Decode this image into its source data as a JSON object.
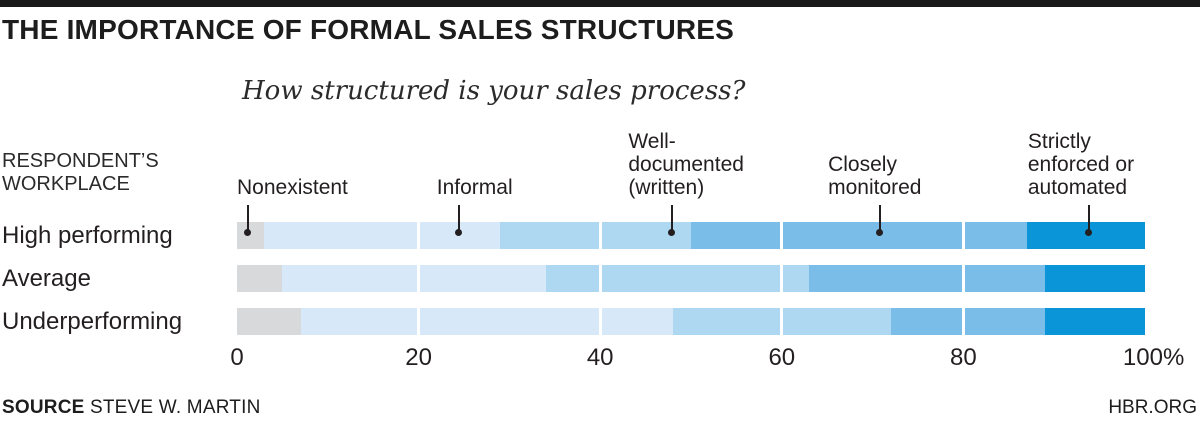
{
  "header": {
    "title": "THE IMPORTANCE OF FORMAL SALES STRUCTURES"
  },
  "row_axis": {
    "line1": "RESPONDENT’S",
    "line2": "WORKPLACE"
  },
  "chart_data": {
    "type": "bar",
    "stacked": true,
    "orientation": "horizontal",
    "title": "How structured is your sales process?",
    "categories": [
      "High performing",
      "Average",
      "Underperforming"
    ],
    "series": [
      {
        "name": "Nonexistent",
        "color": "#d8d9db",
        "values": [
          3,
          5,
          7
        ]
      },
      {
        "name": "Informal",
        "color": "#d7e9f8",
        "values": [
          26,
          29,
          41
        ]
      },
      {
        "name": "Well-documented (written)",
        "color": "#aed7f1",
        "values": [
          21,
          29,
          24
        ]
      },
      {
        "name": "Closely monitored",
        "color": "#7abde8",
        "values": [
          37,
          26,
          17
        ]
      },
      {
        "name": "Strictly enforced or automated",
        "color": "#0995d8",
        "values": [
          13,
          11,
          11
        ]
      }
    ],
    "xlim": [
      0,
      100
    ],
    "grid": true,
    "grid_pcts": [
      20,
      40,
      60,
      80
    ],
    "gridline_color": "#ffffff",
    "x_ticks": [
      {
        "label": "0",
        "pct": 0
      },
      {
        "label": "20",
        "pct": 20
      },
      {
        "label": "40",
        "pct": 40
      },
      {
        "label": "60",
        "pct": 60
      },
      {
        "label": "80",
        "pct": 80
      },
      {
        "label": "100%",
        "pct": 100
      }
    ],
    "series_labels": [
      {
        "lines": [
          "Nonexistent"
        ],
        "left_pct": 0,
        "pointer_pct": 1.2
      },
      {
        "lines": [
          "Informal"
        ],
        "left_pct": 22.0,
        "pointer_pct": 24.4
      },
      {
        "lines": [
          "Well-",
          "documented",
          "(written)"
        ],
        "left_pct": 43.1,
        "pointer_pct": 47.9
      },
      {
        "lines": [
          "Closely",
          "monitored"
        ],
        "left_pct": 65.1,
        "pointer_pct": 70.8
      },
      {
        "lines": [
          "Strictly",
          "enforced or",
          "automated"
        ],
        "left_pct": 87.1,
        "pointer_pct": 93.8
      }
    ]
  },
  "footer": {
    "source_label": "SOURCE",
    "source_value": "STEVE W. MARTIN",
    "site": "HBR.ORG"
  }
}
